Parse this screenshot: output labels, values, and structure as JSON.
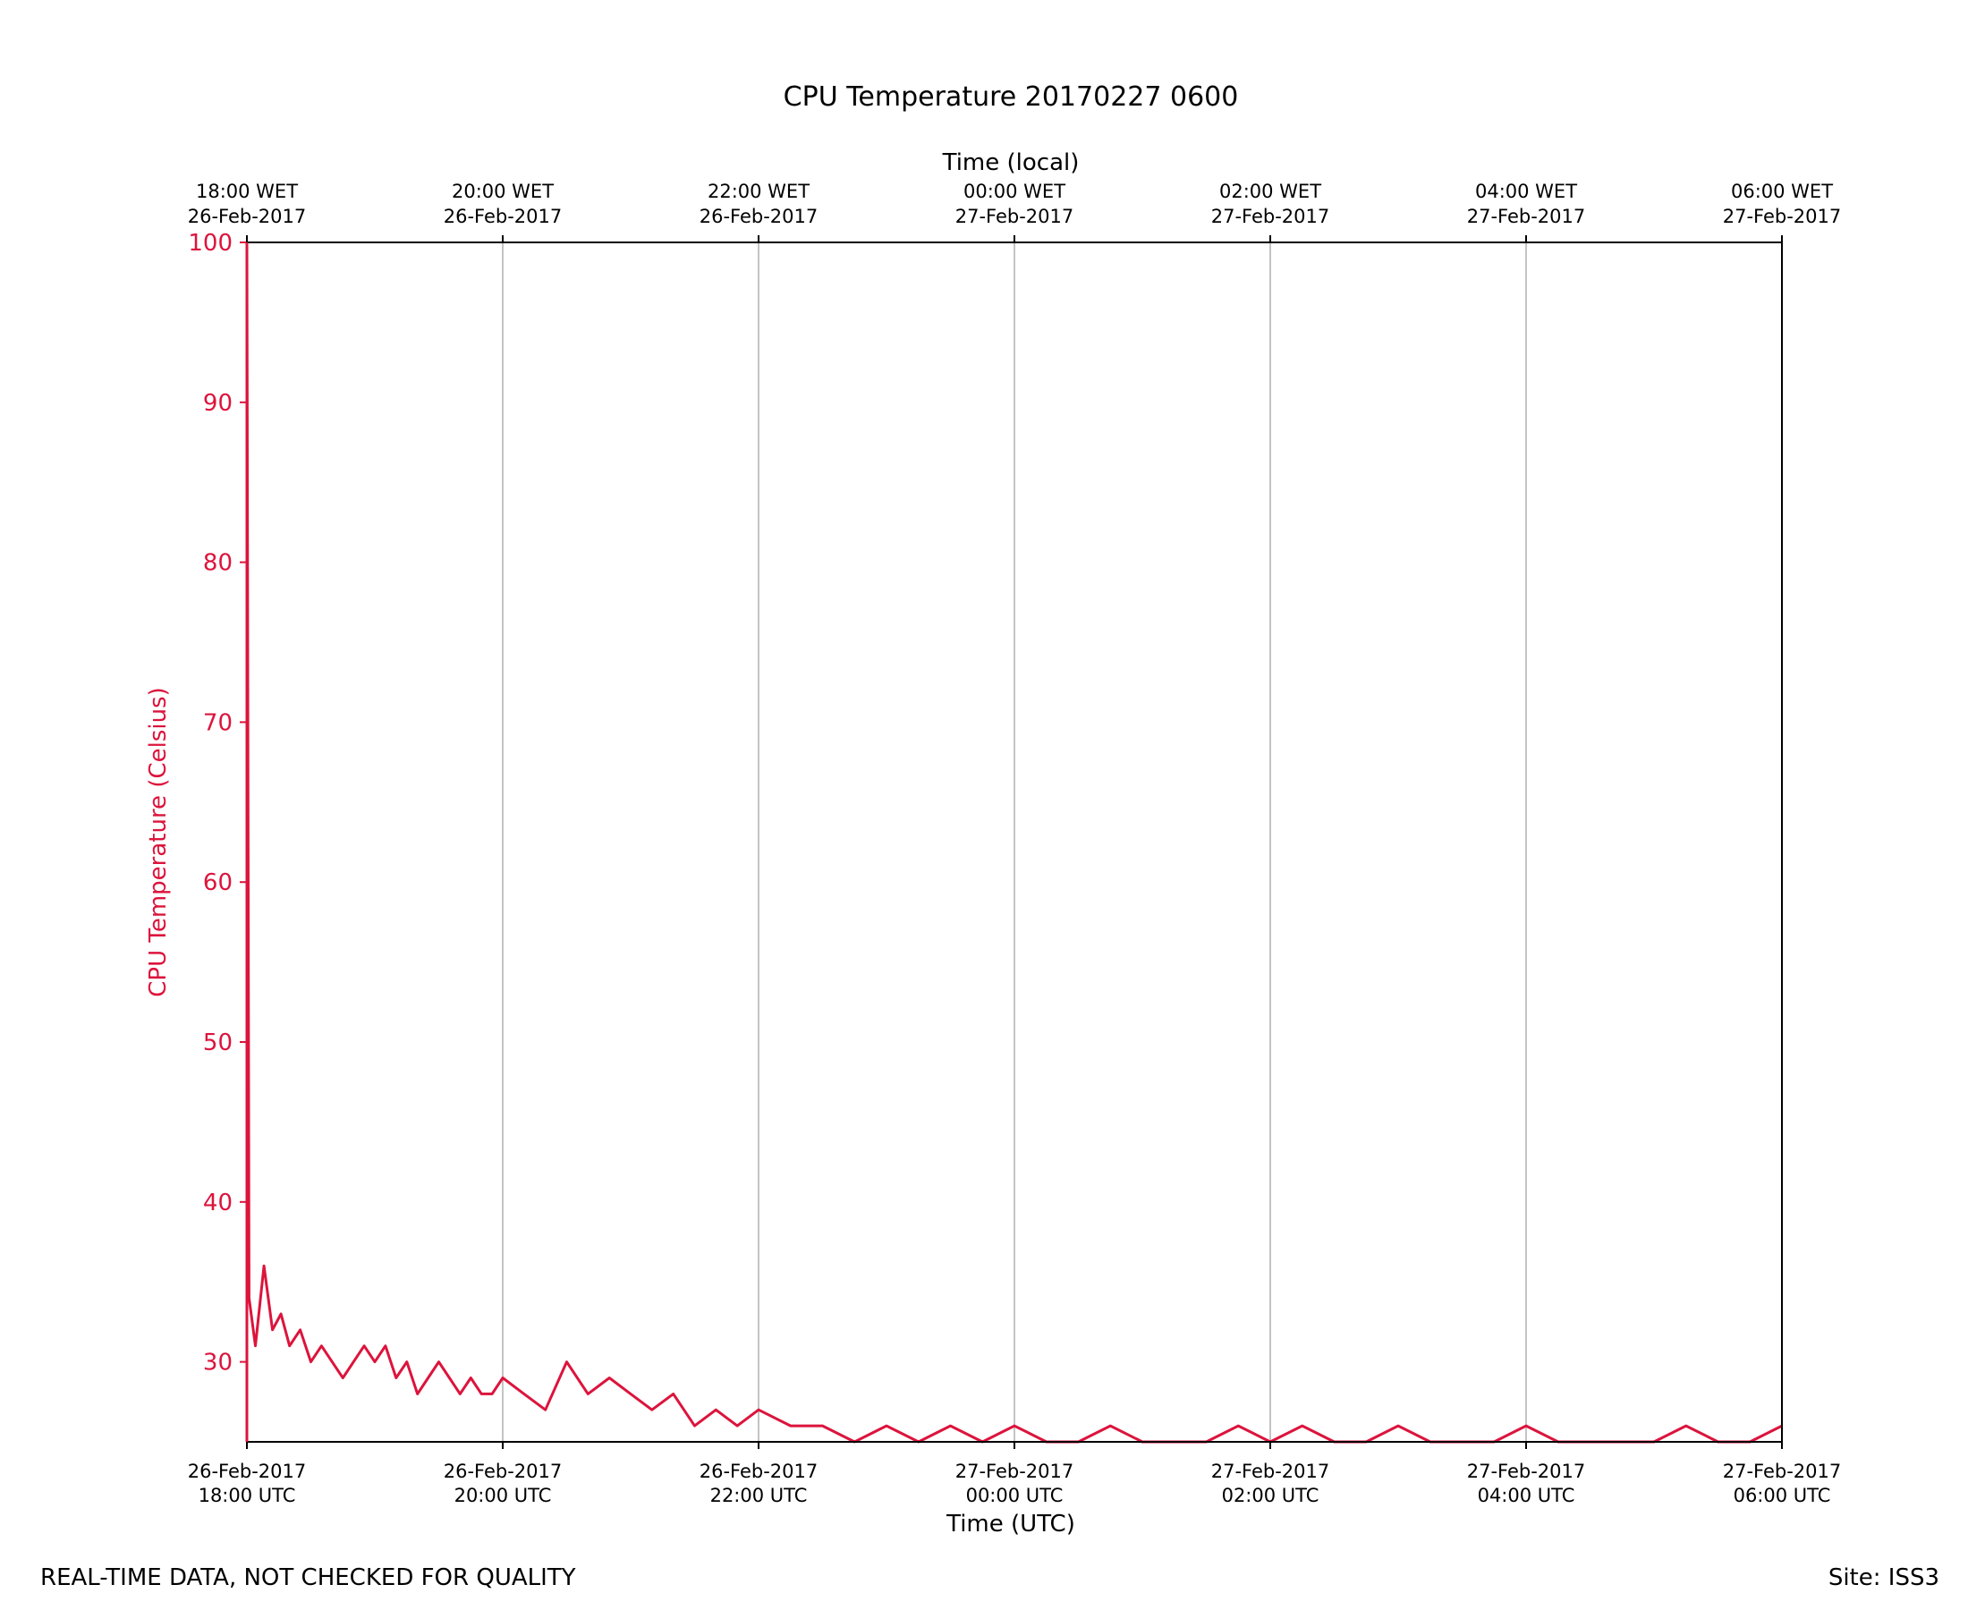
{
  "chart_data": {
    "type": "line",
    "title": "CPU Temperature 20170227 0600",
    "xlabel": "Time (UTC)",
    "x2label": "Time (local)",
    "ylabel": "CPU Temperature (Celsius)",
    "ylim": [
      25,
      100
    ],
    "yticks": [
      30,
      40,
      50,
      60,
      70,
      80,
      90,
      100
    ],
    "xlim": [
      "2017-02-26T18:00Z",
      "2017-02-27T06:00Z"
    ],
    "grid": "vertical",
    "series_color": "#dc143c",
    "xticks_bottom": [
      {
        "line1": "26-Feb-2017",
        "line2": "18:00 UTC"
      },
      {
        "line1": "26-Feb-2017",
        "line2": "20:00 UTC"
      },
      {
        "line1": "26-Feb-2017",
        "line2": "22:00 UTC"
      },
      {
        "line1": "27-Feb-2017",
        "line2": "00:00 UTC"
      },
      {
        "line1": "27-Feb-2017",
        "line2": "02:00 UTC"
      },
      {
        "line1": "27-Feb-2017",
        "line2": "04:00 UTC"
      },
      {
        "line1": "27-Feb-2017",
        "line2": "06:00 UTC"
      }
    ],
    "xticks_top": [
      {
        "line1": "18:00 WET",
        "line2": "26-Feb-2017"
      },
      {
        "line1": "20:00 WET",
        "line2": "26-Feb-2017"
      },
      {
        "line1": "22:00 WET",
        "line2": "26-Feb-2017"
      },
      {
        "line1": "00:00 WET",
        "line2": "27-Feb-2017"
      },
      {
        "line1": "02:00 WET",
        "line2": "27-Feb-2017"
      },
      {
        "line1": "04:00 WET",
        "line2": "27-Feb-2017"
      },
      {
        "line1": "06:00 WET",
        "line2": "27-Feb-2017"
      }
    ],
    "series": [
      {
        "x": [
          "2017-02-26T18:00Z",
          "2017-02-26T18:01Z",
          "2017-02-26T18:04Z",
          "2017-02-26T18:08Z",
          "2017-02-26T18:12Z",
          "2017-02-26T18:16Z",
          "2017-02-26T18:20Z",
          "2017-02-26T18:25Z",
          "2017-02-26T18:30Z",
          "2017-02-26T18:35Z",
          "2017-02-26T18:40Z",
          "2017-02-26T18:45Z",
          "2017-02-26T18:50Z",
          "2017-02-26T18:55Z",
          "2017-02-26T19:00Z",
          "2017-02-26T19:05Z",
          "2017-02-26T19:10Z",
          "2017-02-26T19:15Z",
          "2017-02-26T19:20Z",
          "2017-02-26T19:25Z",
          "2017-02-26T19:30Z",
          "2017-02-26T19:35Z",
          "2017-02-26T19:40Z",
          "2017-02-26T19:45Z",
          "2017-02-26T19:50Z",
          "2017-02-26T19:55Z",
          "2017-02-26T20:00Z",
          "2017-02-26T20:10Z",
          "2017-02-26T20:20Z",
          "2017-02-26T20:30Z",
          "2017-02-26T20:40Z",
          "2017-02-26T20:50Z",
          "2017-02-26T21:00Z",
          "2017-02-26T21:10Z",
          "2017-02-26T21:20Z",
          "2017-02-26T21:30Z",
          "2017-02-26T21:40Z",
          "2017-02-26T21:50Z",
          "2017-02-26T22:00Z",
          "2017-02-26T22:15Z",
          "2017-02-26T22:30Z",
          "2017-02-26T22:45Z",
          "2017-02-26T23:00Z",
          "2017-02-26T23:15Z",
          "2017-02-26T23:30Z",
          "2017-02-26T23:45Z",
          "2017-02-27T00:00Z",
          "2017-02-27T00:15Z",
          "2017-02-27T00:30Z",
          "2017-02-27T00:45Z",
          "2017-02-27T01:00Z",
          "2017-02-27T01:15Z",
          "2017-02-27T01:30Z",
          "2017-02-27T01:45Z",
          "2017-02-27T02:00Z",
          "2017-02-27T02:15Z",
          "2017-02-27T02:30Z",
          "2017-02-27T02:45Z",
          "2017-02-27T03:00Z",
          "2017-02-27T03:15Z",
          "2017-02-27T03:30Z",
          "2017-02-27T03:45Z",
          "2017-02-27T04:00Z",
          "2017-02-27T04:15Z",
          "2017-02-27T04:30Z",
          "2017-02-27T04:45Z",
          "2017-02-27T05:00Z",
          "2017-02-27T05:15Z",
          "2017-02-27T05:30Z",
          "2017-02-27T05:45Z",
          "2017-02-27T06:00Z"
        ],
        "y": [
          100,
          34,
          31,
          36,
          32,
          33,
          31,
          32,
          30,
          31,
          30,
          29,
          30,
          31,
          30,
          31,
          29,
          30,
          28,
          29,
          30,
          29,
          28,
          29,
          28,
          28,
          29,
          28,
          27,
          30,
          28,
          29,
          28,
          27,
          28,
          26,
          27,
          26,
          27,
          26,
          26,
          25,
          26,
          25,
          26,
          25,
          26,
          25,
          25,
          26,
          25,
          25,
          25,
          26,
          25,
          26,
          25,
          25,
          26,
          25,
          25,
          25,
          26,
          25,
          25,
          25,
          25,
          26,
          25,
          25,
          26
        ]
      }
    ]
  },
  "footer": {
    "left": "REAL-TIME DATA, NOT CHECKED FOR QUALITY",
    "right": "Site: ISS3"
  }
}
